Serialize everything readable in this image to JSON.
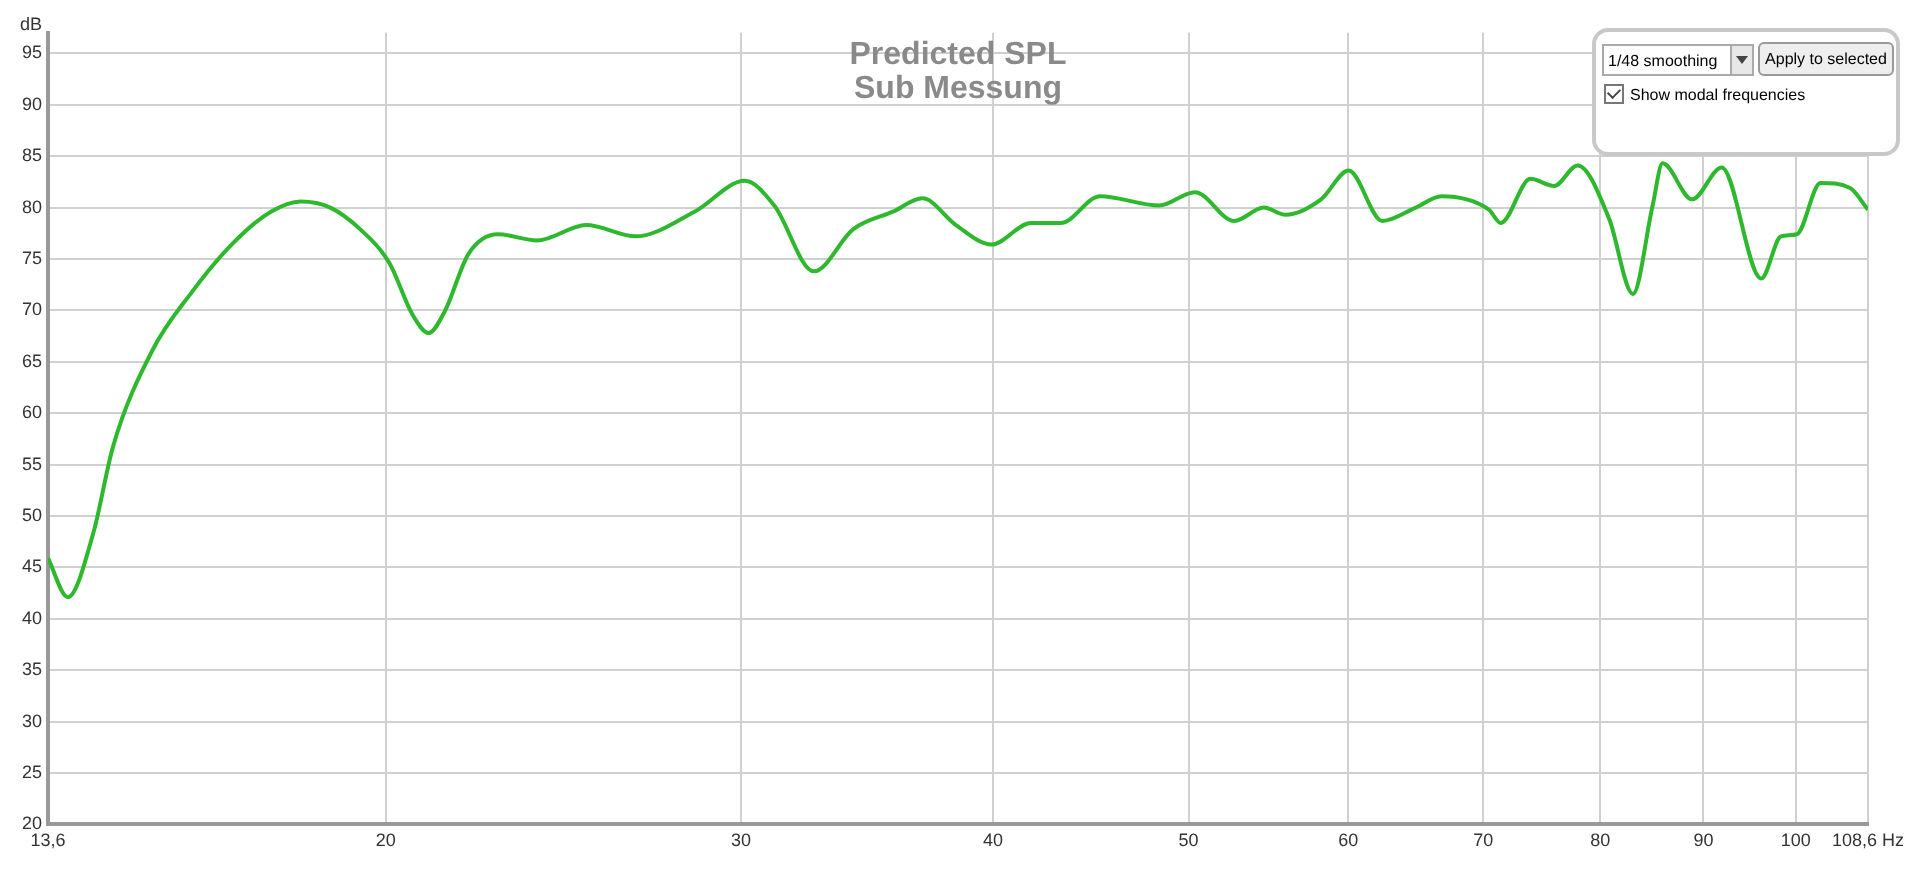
{
  "chart_data": {
    "type": "line",
    "title": "Predicted SPL",
    "subtitle": "Sub Messung",
    "ylabel": "dB",
    "x": [
      13.6,
      13.91,
      14.32,
      14.65,
      15.32,
      16.03,
      16.77,
      17.54,
      18.15,
      18.77,
      19.42,
      20.08,
      20.63,
      21.0,
      21.39,
      21.98,
      22.73,
      23.77,
      25.14,
      26.59,
      28.45,
      30.13,
      31.16,
      32.6,
      34.1,
      35.68,
      36.9,
      38.34,
      39.93,
      41.77,
      43.21,
      45.2,
      48.36,
      50.36,
      52.68,
      54.49,
      55.86,
      58.17,
      60.03,
      62.38,
      64.81,
      66.74,
      70.45,
      71.41,
      73.87,
      75.89,
      77.96,
      80.82,
      83.04,
      84.93,
      85.9,
      88.85,
      91.9,
      96.14,
      98.34,
      100.13,
      102.87,
      106.4,
      108.6
    ],
    "series": [
      {
        "color": "#2db82d",
        "values": [
          45.9,
          42.1,
          48.3,
          56.8,
          66.1,
          71.8,
          76.4,
          79.6,
          80.6,
          80.0,
          77.9,
          74.6,
          69.5,
          67.8,
          69.9,
          75.5,
          77.4,
          76.8,
          78.3,
          77.2,
          79.6,
          82.6,
          80.2,
          73.8,
          77.9,
          79.6,
          80.9,
          78.3,
          76.4,
          78.5,
          78.5,
          81.1,
          80.2,
          81.5,
          78.7,
          80.0,
          79.3,
          80.8,
          83.6,
          78.7,
          80.0,
          81.1,
          79.8,
          78.5,
          82.8,
          82.1,
          84.1,
          78.9,
          71.6,
          80.2,
          84.3,
          80.8,
          83.9,
          73.1,
          77.2,
          77.4,
          82.4,
          81.9,
          79.8
        ]
      }
    ],
    "xlim": [
      13.6,
      108.6
    ],
    "log": "x",
    "xticks": [
      {
        "value": 13.6,
        "label": "13,6"
      },
      20,
      30,
      40,
      50,
      60,
      70,
      80,
      90,
      100,
      {
        "value": 108.6,
        "label": "108,6 Hz"
      }
    ],
    "ylim": [
      20,
      97
    ],
    "yticks": [
      20,
      25,
      30,
      35,
      40,
      45,
      50,
      55,
      60,
      65,
      70,
      75,
      80,
      85,
      90,
      95
    ],
    "grid": true,
    "legend": false,
    "marker": "none",
    "line_style": "solid",
    "annotations": [
      "1/48 smoothing",
      "Apply to selected",
      "Show modal frequencies"
    ]
  }
}
